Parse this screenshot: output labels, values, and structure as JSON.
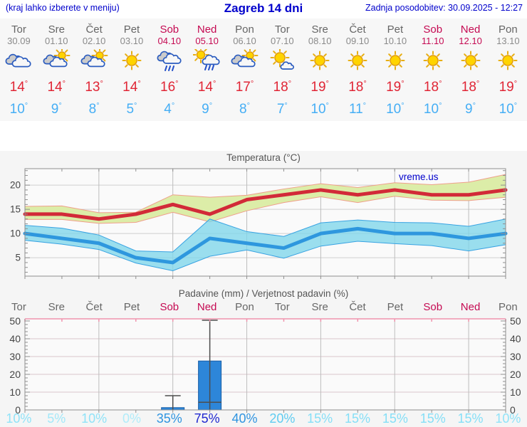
{
  "header": {
    "left": "(kraj lahko izberete v meniju)",
    "title": "Zagreb 14 dni",
    "right": "Zadnja posodobitev: 30.09.2025 - 12:27"
  },
  "colors": {
    "accent_blue": "#0000cc",
    "weekday": "#666666",
    "date_grey": "#8a8a8a",
    "weekend": "#c50a52",
    "temp_high": "#e02535",
    "temp_low": "#45aef5",
    "bar_blue": "#2d86d9",
    "band_green": "#dcedा8",
    "line_red": "#d22a38",
    "line_blue": "#2e97de"
  },
  "prob_colors": {
    "0": "#b0ecfa",
    "5": "#a3e8f9",
    "10": "#90e3f8",
    "15": "#85dff7",
    "20": "#5fccf1",
    "35": "#2f94e0",
    "40": "#2f94e0",
    "75": "#2028d0"
  },
  "days": [
    {
      "name": "Tor",
      "date": "30.09",
      "weekend": false,
      "icon": "cloudy",
      "tmax": 14,
      "tmin": 10,
      "prob": 10
    },
    {
      "name": "Sre",
      "date": "01.10",
      "weekend": false,
      "icon": "partly-cloudy",
      "tmax": 14,
      "tmin": 9,
      "prob": 5
    },
    {
      "name": "Čet",
      "date": "02.10",
      "weekend": false,
      "icon": "partly-cloudy",
      "tmax": 13,
      "tmin": 8,
      "prob": 10
    },
    {
      "name": "Pet",
      "date": "03.10",
      "weekend": false,
      "icon": "sunny",
      "tmax": 14,
      "tmin": 5,
      "prob": 0
    },
    {
      "name": "Sob",
      "date": "04.10",
      "weekend": true,
      "icon": "rain",
      "tmax": 16,
      "tmin": 4,
      "prob": 35
    },
    {
      "name": "Ned",
      "date": "05.10",
      "weekend": true,
      "icon": "sun-rain",
      "tmax": 14,
      "tmin": 9,
      "prob": 75
    },
    {
      "name": "Pon",
      "date": "06.10",
      "weekend": false,
      "icon": "partly-cloudy",
      "tmax": 17,
      "tmin": 8,
      "prob": 40
    },
    {
      "name": "Tor",
      "date": "07.10",
      "weekend": false,
      "icon": "mostly-sunny",
      "tmax": 18,
      "tmin": 7,
      "prob": 20
    },
    {
      "name": "Sre",
      "date": "08.10",
      "weekend": false,
      "icon": "sunny",
      "tmax": 19,
      "tmin": 10,
      "prob": 15
    },
    {
      "name": "Čet",
      "date": "09.10",
      "weekend": false,
      "icon": "sunny",
      "tmax": 18,
      "tmin": 11,
      "prob": 15
    },
    {
      "name": "Pet",
      "date": "10.10",
      "weekend": false,
      "icon": "sunny",
      "tmax": 19,
      "tmin": 10,
      "prob": 15
    },
    {
      "name": "Sob",
      "date": "11.10",
      "weekend": true,
      "icon": "sunny",
      "tmax": 18,
      "tmin": 10,
      "prob": 15
    },
    {
      "name": "Ned",
      "date": "12.10",
      "weekend": true,
      "icon": "sunny",
      "tmax": 18,
      "tmin": 9,
      "prob": 15
    },
    {
      "name": "Pon",
      "date": "13.10",
      "weekend": false,
      "icon": "sunny",
      "tmax": 19,
      "tmin": 10,
      "prob": 10
    }
  ],
  "chart_data": [
    {
      "type": "area",
      "title": "Temperatura (°C)",
      "watermark": "vreme.us",
      "ylabel": "",
      "y_ticks": [
        5,
        10,
        15,
        20
      ],
      "ylim": [
        1.2,
        23.4
      ],
      "grid_day_indexes": [
        2,
        4,
        6,
        8,
        10,
        12
      ],
      "series": [
        {
          "name": "tmax",
          "values": [
            14,
            14,
            13,
            14,
            16,
            14,
            17,
            18,
            19,
            18,
            19,
            18,
            18,
            19
          ]
        },
        {
          "name": "tmax_upper",
          "values": [
            15.6,
            15.7,
            14.3,
            14.4,
            18.0,
            17.5,
            17.9,
            19.2,
            20.3,
            19.5,
            20.5,
            20.1,
            20.6,
            22.2
          ]
        },
        {
          "name": "tmax_lower",
          "values": [
            12.9,
            12.9,
            12.1,
            12.3,
            14.4,
            12.4,
            14.7,
            16.4,
            17.6,
            16.4,
            17.7,
            16.9,
            16.8,
            17.5
          ]
        },
        {
          "name": "tmin",
          "values": [
            10,
            9,
            8,
            5,
            4,
            9,
            8,
            7,
            10,
            11,
            10,
            10,
            9,
            10
          ]
        },
        {
          "name": "tmin_upper",
          "values": [
            11.7,
            11.1,
            9.7,
            6.4,
            6.2,
            13.0,
            10.4,
            9.4,
            12.2,
            12.8,
            12.3,
            12.2,
            11.5,
            13.0
          ]
        },
        {
          "name": "tmin_lower",
          "values": [
            8.6,
            7.8,
            6.7,
            3.9,
            2.3,
            5.3,
            6.6,
            4.9,
            7.4,
            8.4,
            7.9,
            7.5,
            6.4,
            7.7
          ]
        }
      ]
    },
    {
      "type": "bar",
      "title": "Padavine (mm) / Verjetnost padavin (%)",
      "y_ticks": [
        0,
        10,
        20,
        30,
        40,
        50
      ],
      "ylim": [
        0,
        51.2
      ],
      "grid_day_indexes": [
        2,
        4,
        6,
        8,
        10,
        12
      ],
      "categories": [
        "Tor",
        "Sre",
        "Čet",
        "Pet",
        "Sob",
        "Ned",
        "Pon",
        "Tor",
        "Sre",
        "Čet",
        "Pet",
        "Sob",
        "Ned",
        "Pon"
      ],
      "values_mm": [
        0,
        0,
        0,
        0,
        1.3,
        27.5,
        0,
        0,
        0,
        0,
        0,
        0,
        0,
        0
      ],
      "bars": [
        {
          "day_index": 4,
          "mm": 1.3,
          "max_mm": 8
        },
        {
          "day_index": 5,
          "mm": 27.5,
          "max_mm": 52,
          "min_mm": 4.3
        }
      ],
      "probabilities_pct": [
        10,
        5,
        10,
        0,
        35,
        75,
        40,
        20,
        15,
        15,
        15,
        15,
        15,
        10
      ]
    }
  ]
}
